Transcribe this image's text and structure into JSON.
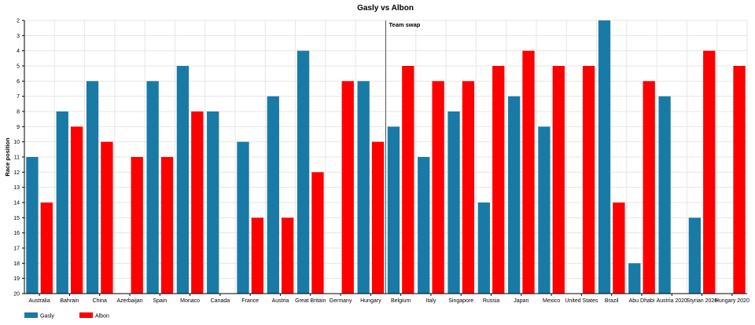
{
  "chart_data": {
    "type": "bar",
    "title": "Gasly vs Albon",
    "xlabel": "",
    "ylabel": "Race position",
    "ylim": [
      2,
      20
    ],
    "y_inverted": true,
    "y_ticks": [
      "2",
      "3",
      "4",
      "5",
      "6",
      "7",
      "8",
      "9",
      "10",
      "11",
      "12",
      "13",
      "14",
      "15",
      "16",
      "17",
      "18",
      "19",
      "20"
    ],
    "grid": true,
    "legend_position": "bottom-left",
    "categories": [
      "Australia",
      "Bahrain",
      "China",
      "Azerbaijan",
      "Spain",
      "Monaco",
      "Canada",
      "France",
      "Austria",
      "Great Britain",
      "Germany",
      "Hungary",
      "Belgium",
      "Italy",
      "Singapore",
      "Russia",
      "Japan",
      "Mexico",
      "United States",
      "Brazil",
      "Abu Dhabi",
      "Austria 2020",
      "Styrian 2020",
      "Hungary 2020"
    ],
    "series": [
      {
        "name": "Gasly",
        "color": "#1a7aa6",
        "values": [
          11,
          8,
          6,
          null,
          6,
          5,
          8,
          10,
          7,
          4,
          null,
          6,
          9,
          11,
          8,
          14,
          7,
          9,
          null,
          2,
          18,
          7,
          15,
          null
        ]
      },
      {
        "name": "Albon",
        "color": "#ff0000",
        "values": [
          14,
          9,
          10,
          11,
          11,
          8,
          null,
          15,
          15,
          12,
          6,
          10,
          5,
          6,
          6,
          5,
          4,
          5,
          5,
          14,
          6,
          null,
          4,
          5
        ]
      }
    ],
    "annotations": [
      {
        "text": "Team swap",
        "between": [
          "Hungary",
          "Belgium"
        ]
      }
    ]
  }
}
